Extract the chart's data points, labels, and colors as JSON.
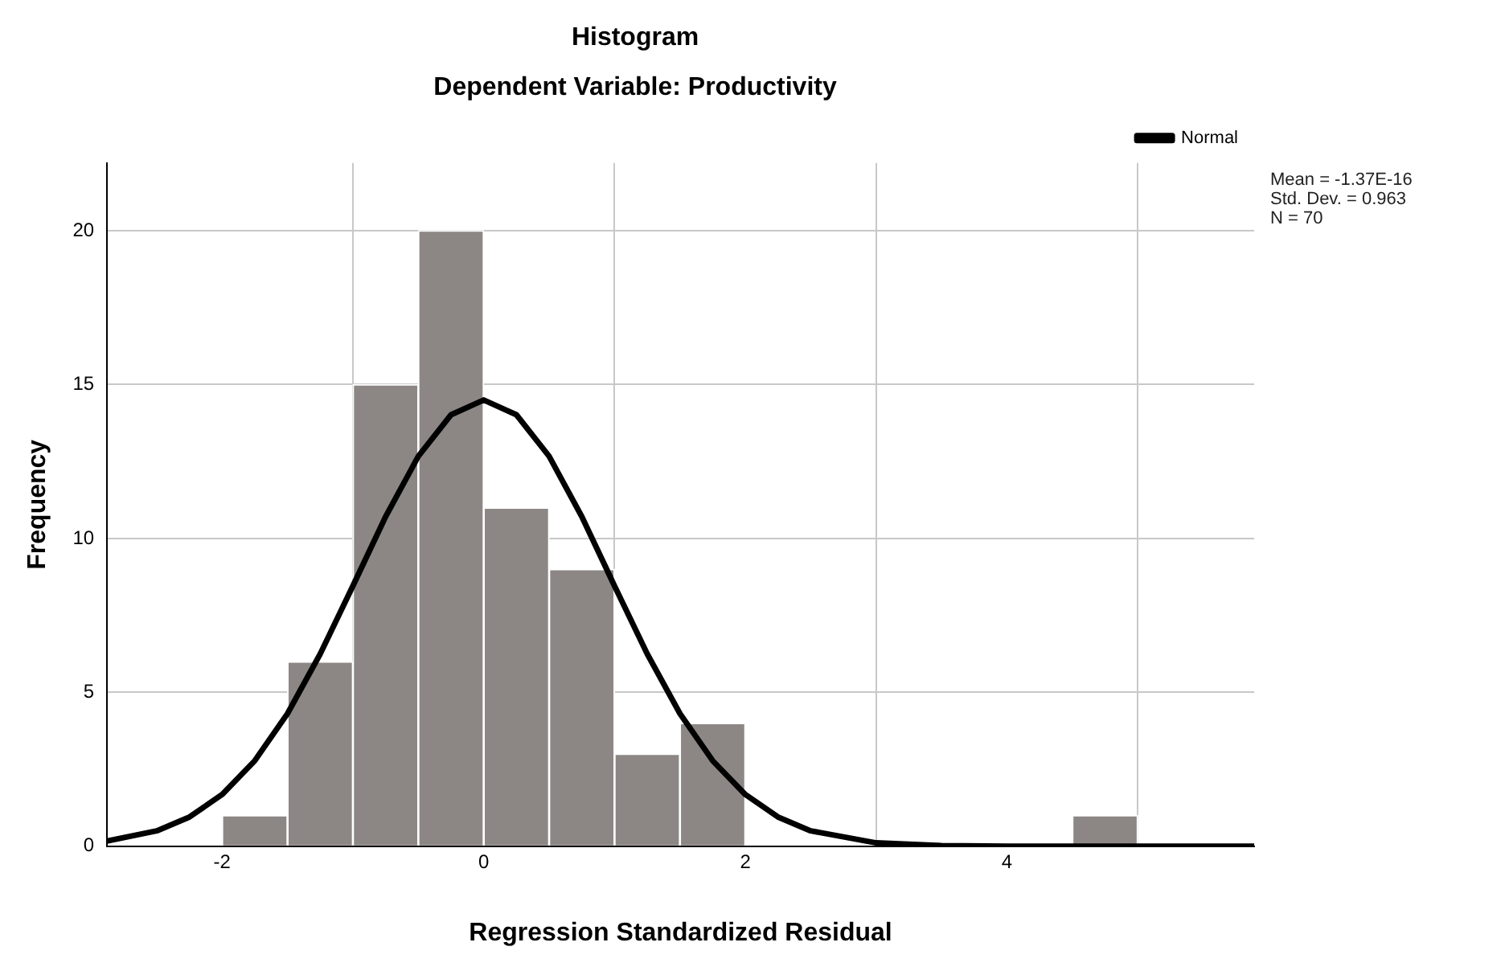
{
  "chart_data": {
    "type": "histogram",
    "title": "Histogram",
    "subtitle": "Dependent Variable: Productivity",
    "xlabel": "Regression Standardized Residual",
    "ylabel": "Frequency",
    "bins": [
      -2,
      -1.5,
      -1,
      -0.5,
      0,
      0.5,
      1,
      1.5,
      2,
      2.5,
      3,
      3.5,
      4,
      4.5,
      5
    ],
    "values": [
      1,
      6,
      15,
      20,
      11,
      9,
      3,
      4,
      0,
      0,
      0,
      0,
      0,
      1
    ],
    "color": "#8c8785",
    "series": [
      {
        "name": "Normal",
        "type": "line",
        "color": "#000000",
        "x": [
          -2.88,
          -2.5,
          -2.25,
          -2,
          -1.75,
          -1.5,
          -1.25,
          -1,
          -0.75,
          -0.5,
          -0.25,
          0,
          0.25,
          0.5,
          0.75,
          1,
          1.25,
          1.5,
          1.75,
          2,
          2.25,
          2.5,
          3,
          3.5,
          4,
          5,
          5.89
        ],
        "values": [
          0.17,
          0.5,
          0.95,
          1.68,
          2.78,
          4.31,
          6.25,
          8.46,
          10.71,
          12.67,
          14.02,
          14.5,
          14.02,
          12.67,
          10.71,
          8.46,
          6.25,
          4.31,
          2.78,
          1.68,
          0.95,
          0.5,
          0.11,
          0.02,
          0,
          0,
          0
        ]
      }
    ],
    "xlim": [
      -2.88,
      5.89
    ],
    "xticks": [
      -2,
      0,
      2,
      4
    ],
    "ylim": [
      0,
      22.2
    ],
    "yticks": [
      0,
      5,
      10,
      15,
      20
    ],
    "grid": true,
    "legend": "top right",
    "marker": "none",
    "line_style": "solid",
    "annotations": [
      "Mean = -1.37E-16",
      "Std. Dev. = 0.963",
      "N = 70"
    ]
  }
}
